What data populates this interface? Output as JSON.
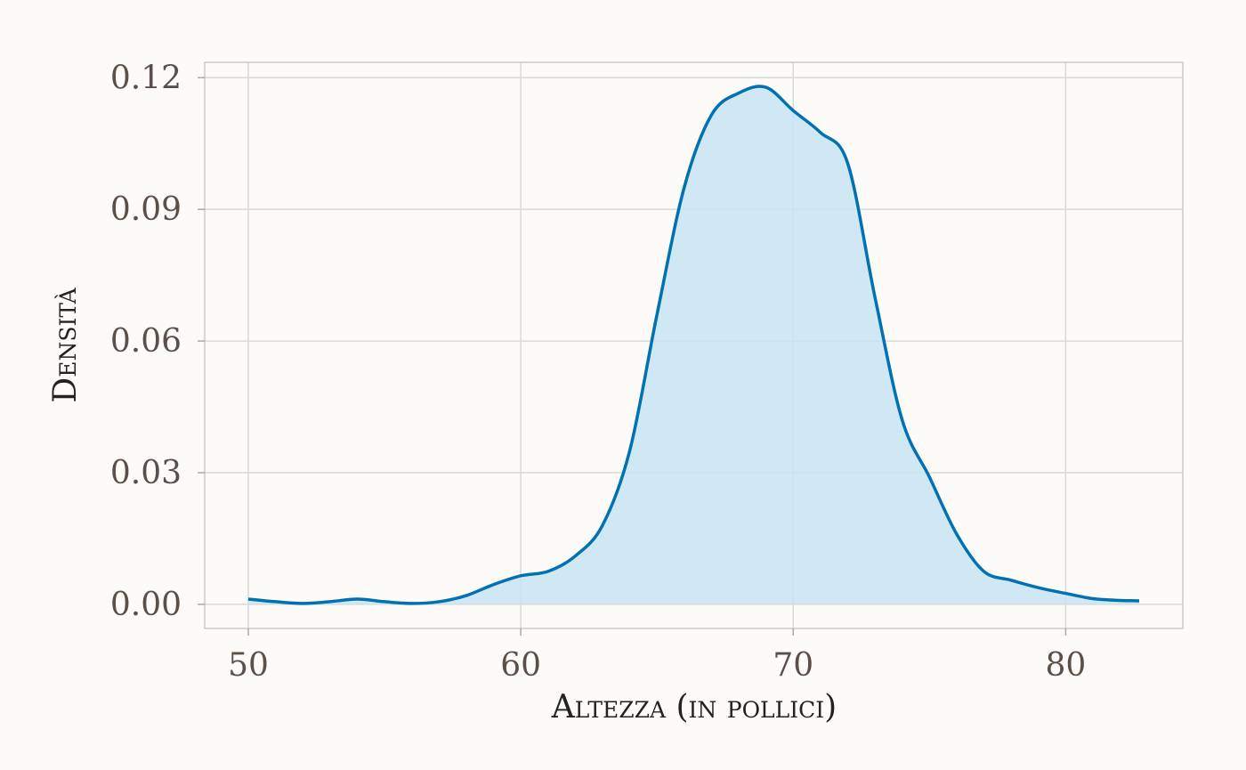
{
  "chart_data": {
    "type": "area",
    "xlabel": "Altezza (in pollici)",
    "ylabel": "Densità",
    "xlim": [
      48.4,
      84.3
    ],
    "ylim": [
      -0.0055,
      0.1235
    ],
    "x_ticks": [
      50,
      60,
      70,
      80
    ],
    "x_tick_labels": [
      "50",
      "60",
      "70",
      "80"
    ],
    "y_ticks": [
      0.0,
      0.03,
      0.06,
      0.09,
      0.12
    ],
    "y_tick_labels": [
      "0.00",
      "0.03",
      "0.06",
      "0.09",
      "0.12"
    ],
    "grid": true,
    "colors": {
      "line": "#0072b2",
      "fill": "#c8e3f3",
      "background": "#fcfbf8",
      "grid": "#d9d9d6"
    },
    "series": [
      {
        "x": [
          50,
          51,
          52,
          53,
          54,
          55,
          56,
          57,
          58,
          59,
          60,
          61,
          62,
          63,
          64,
          65,
          66,
          67,
          68,
          69,
          70,
          71,
          72,
          73,
          74,
          75,
          76,
          77,
          78,
          79,
          80,
          81,
          82,
          82.7
        ],
        "y": [
          0.0012,
          0.0006,
          0.0002,
          0.0006,
          0.0012,
          0.0006,
          0.0002,
          0.0006,
          0.002,
          0.0045,
          0.0065,
          0.0075,
          0.011,
          0.018,
          0.035,
          0.066,
          0.095,
          0.1115,
          0.1165,
          0.1178,
          0.1125,
          0.1075,
          0.1005,
          0.07,
          0.042,
          0.029,
          0.016,
          0.0075,
          0.0055,
          0.0038,
          0.0025,
          0.0013,
          0.0009,
          0.0008
        ]
      }
    ]
  }
}
